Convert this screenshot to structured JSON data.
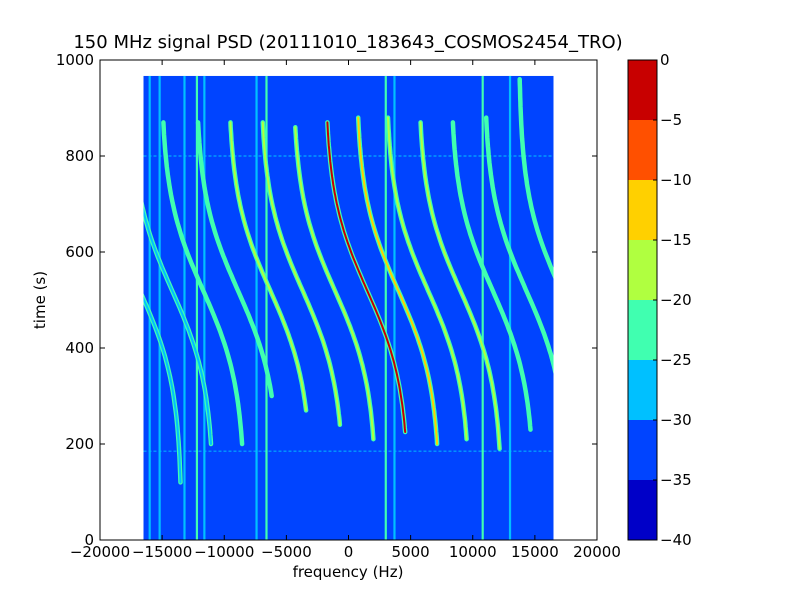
{
  "chart_data": {
    "type": "heatmap",
    "title": "150 MHz signal PSD (20111010_183643_COSMOS2454_TRO)",
    "xlabel": "frequency (Hz)",
    "ylabel": "time (s)",
    "xlim": [
      -20000,
      20000
    ],
    "ylim": [
      0,
      1000
    ],
    "x_ticks": [
      "−20000",
      "−15000",
      "−10000",
      "−5000",
      "0",
      "5000",
      "10000",
      "15000",
      "20000"
    ],
    "y_ticks": [
      "0",
      "200",
      "400",
      "600",
      "800",
      "1000"
    ],
    "data_extent": {
      "freq": [
        -16500,
        16500
      ],
      "time": [
        0,
        967
      ]
    },
    "background_level": -35,
    "colorbar": {
      "range": [
        -40,
        0
      ],
      "levels": [
        {
          "from": -40,
          "to": -35,
          "color": "#0000c8"
        },
        {
          "from": -35,
          "to": -30,
          "color": "#0044ff"
        },
        {
          "from": -30,
          "to": -25,
          "color": "#00c0ff"
        },
        {
          "from": -25,
          "to": -20,
          "color": "#40ffb0"
        },
        {
          "from": -20,
          "to": -15,
          "color": "#b0ff40"
        },
        {
          "from": -15,
          "to": -10,
          "color": "#ffd000"
        },
        {
          "from": -10,
          "to": -5,
          "color": "#ff5000"
        },
        {
          "from": -5,
          "to": 0,
          "color": "#c80000"
        }
      ],
      "tick_labels": [
        "0",
        "−5",
        "−10",
        "−15",
        "−20",
        "−25",
        "−30",
        "−35",
        "−40"
      ]
    },
    "vertical_lines": [
      {
        "freq": -16000,
        "level": -30
      },
      {
        "freq": -15200,
        "level": -30
      },
      {
        "freq": -13200,
        "level": -30
      },
      {
        "freq": -12200,
        "level": -25
      },
      {
        "freq": -11600,
        "level": -30
      },
      {
        "freq": -7400,
        "level": -30
      },
      {
        "freq": -6600,
        "level": -25
      },
      {
        "freq": 3000,
        "level": -25
      },
      {
        "freq": 3700,
        "level": -30
      },
      {
        "freq": 10800,
        "level": -25
      },
      {
        "freq": 13000,
        "level": -30
      }
    ],
    "horizontal_lines": [
      {
        "time": 800,
        "level": -30
      },
      {
        "time": 185,
        "level": -30
      }
    ],
    "doppler_traces": [
      {
        "center_freq": -16800,
        "t_center": 520,
        "amplitude": 3400,
        "t_top": 960,
        "t_bottom": 120,
        "level": -30
      },
      {
        "center_freq": -14200,
        "t_center": 520,
        "amplitude": 3400,
        "t_top": 960,
        "t_bottom": 200,
        "level": -30
      },
      {
        "center_freq": -11700,
        "t_center": 520,
        "amplitude": 3400,
        "t_top": 870,
        "t_bottom": 200,
        "level": -25
      },
      {
        "center_freq": -8900,
        "t_center": 520,
        "amplitude": 3400,
        "t_top": 870,
        "t_bottom": 300,
        "level": -25
      },
      {
        "center_freq": -6300,
        "t_center": 520,
        "amplitude": 3400,
        "t_top": 870,
        "t_bottom": 270,
        "level": -20
      },
      {
        "center_freq": -3700,
        "t_center": 520,
        "amplitude": 3400,
        "t_top": 870,
        "t_bottom": 240,
        "level": -20
      },
      {
        "center_freq": -1100,
        "t_center": 520,
        "amplitude": 3400,
        "t_top": 860,
        "t_bottom": 210,
        "level": -20
      },
      {
        "center_freq": 1500,
        "t_center": 520,
        "amplitude": 3400,
        "t_top": 870,
        "t_bottom": 225,
        "level": -5
      },
      {
        "center_freq": 4000,
        "t_center": 520,
        "amplitude": 3400,
        "t_top": 880,
        "t_bottom": 200,
        "level": -15
      },
      {
        "center_freq": 6400,
        "t_center": 520,
        "amplitude": 3400,
        "t_top": 880,
        "t_bottom": 210,
        "level": -20
      },
      {
        "center_freq": 9000,
        "t_center": 520,
        "amplitude": 3400,
        "t_top": 870,
        "t_bottom": 190,
        "level": -20
      },
      {
        "center_freq": 11600,
        "t_center": 520,
        "amplitude": 3400,
        "t_top": 870,
        "t_bottom": 230,
        "level": -25
      },
      {
        "center_freq": 14300,
        "t_center": 520,
        "amplitude": 3400,
        "t_top": 880,
        "t_bottom": 200,
        "level": -25
      },
      {
        "center_freq": 17100,
        "t_center": 520,
        "amplitude": 3400,
        "t_top": 960,
        "t_bottom": 200,
        "level": -25
      }
    ]
  }
}
